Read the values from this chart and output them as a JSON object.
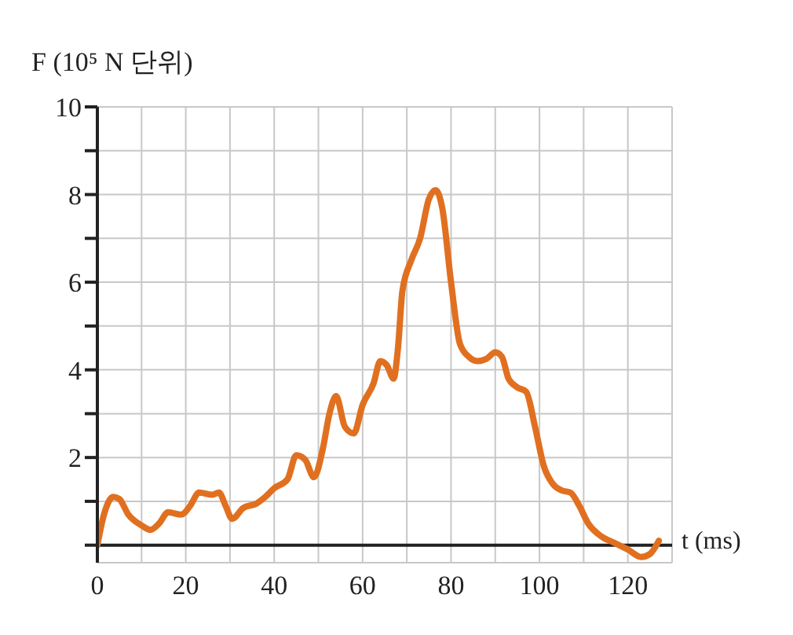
{
  "chart_data": {
    "type": "line",
    "ylabel": "F (10⁵ N 단위)",
    "xlabel": "t (ms)",
    "x": [
      0,
      1.5,
      3.6,
      5,
      7,
      10,
      12,
      14,
      16,
      19,
      21,
      23,
      26,
      27.5,
      29,
      30.5,
      33,
      36,
      38,
      40,
      43,
      45,
      47,
      49,
      51,
      52.5,
      54,
      56,
      58,
      60,
      62.5,
      64,
      65.5,
      67,
      68,
      69,
      71,
      73,
      75,
      76.5,
      78,
      80,
      82,
      84,
      86,
      88,
      90,
      91.5,
      93,
      95,
      97,
      99,
      101,
      103,
      105,
      107,
      109,
      111,
      114,
      117,
      120,
      123,
      125,
      127
    ],
    "series": [
      {
        "color": "#e07020",
        "values": [
          0,
          0.7,
          1.1,
          1.05,
          0.7,
          0.45,
          0.35,
          0.5,
          0.75,
          0.7,
          0.9,
          1.2,
          1.15,
          1.2,
          0.9,
          0.6,
          0.85,
          0.95,
          1.1,
          1.3,
          1.5,
          2.05,
          1.95,
          1.55,
          2.2,
          3.0,
          3.4,
          2.7,
          2.55,
          3.2,
          3.7,
          4.2,
          4.1,
          3.8,
          4.5,
          5.8,
          6.5,
          7.0,
          7.9,
          8.1,
          7.7,
          6.0,
          4.6,
          4.3,
          4.2,
          4.25,
          4.4,
          4.3,
          3.8,
          3.6,
          3.5,
          2.7,
          1.8,
          1.4,
          1.25,
          1.2,
          0.9,
          0.5,
          0.2,
          0.05,
          -0.1,
          -0.27,
          -0.2,
          0.1
        ]
      }
    ],
    "xlim": [
      0,
      130
    ],
    "xticks": [
      {
        "value": 0,
        "label": "0"
      },
      {
        "value": 10,
        "label": null
      },
      {
        "value": 20,
        "label": "20"
      },
      {
        "value": 30,
        "label": null
      },
      {
        "value": 40,
        "label": "40"
      },
      {
        "value": 50,
        "label": null
      },
      {
        "value": 60,
        "label": "60"
      },
      {
        "value": 70,
        "label": null
      },
      {
        "value": 80,
        "label": "80"
      },
      {
        "value": 90,
        "label": null
      },
      {
        "value": 100,
        "label": "100"
      },
      {
        "value": 110,
        "label": null
      },
      {
        "value": 120,
        "label": "120"
      },
      {
        "value": 130,
        "label": null
      }
    ],
    "ylim": [
      -0.4,
      10
    ],
    "yticks": [
      {
        "value": 0,
        "label": null
      },
      {
        "value": 1,
        "label": null
      },
      {
        "value": 2,
        "label": "2"
      },
      {
        "value": 3,
        "label": null
      },
      {
        "value": 4,
        "label": "4"
      },
      {
        "value": 5,
        "label": null
      },
      {
        "value": 6,
        "label": "6"
      },
      {
        "value": 7,
        "label": null
      },
      {
        "value": 8,
        "label": "8"
      },
      {
        "value": 9,
        "label": null
      },
      {
        "value": 10,
        "label": "10"
      }
    ],
    "ref_lines": [
      {
        "axis": "y",
        "value": 0,
        "label": null,
        "color": "#222222"
      }
    ],
    "grid": true,
    "marker": "none",
    "line_style": "solid"
  }
}
